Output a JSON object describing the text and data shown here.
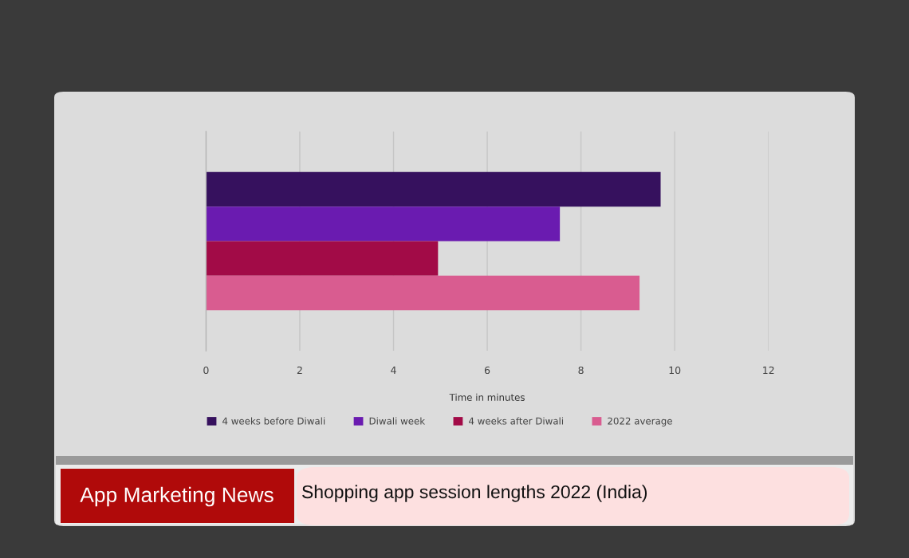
{
  "chart_data": {
    "type": "bar",
    "orientation": "horizontal",
    "title": "Shopping app session lengths 2022 (India)",
    "subtitle": "App Marketing News",
    "xlabel": "Time in minutes",
    "categories": [
      null
    ],
    "series": [
      {
        "name": "4 weeks before Diwali",
        "color": "#36115e",
        "values": [
          9.7
        ]
      },
      {
        "name": "Diwali week",
        "color": "#6a1bb0",
        "values": [
          7.55
        ]
      },
      {
        "name": "4 weeks after Diwali",
        "color": "#a20b47",
        "values": [
          4.95
        ]
      },
      {
        "name": "2022 average",
        "color": "#d95c90",
        "values": [
          9.25
        ]
      }
    ],
    "xlim": [
      0,
      12
    ],
    "xticks": [
      0,
      2,
      4,
      6,
      8,
      10,
      12
    ],
    "grid": "x",
    "legend": "bottom",
    "tick_labels": "x"
  }
}
